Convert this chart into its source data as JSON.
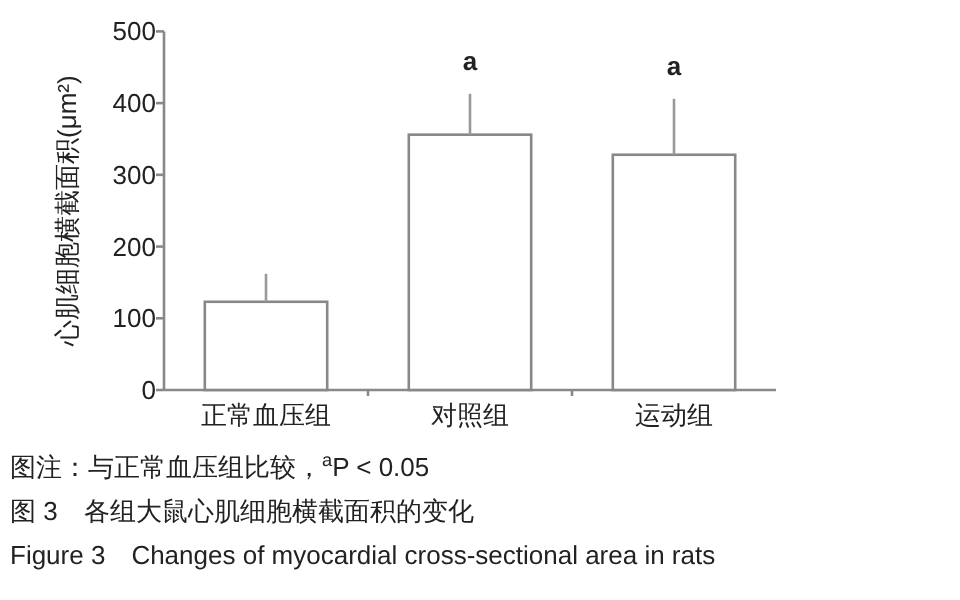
{
  "chart_data": {
    "type": "bar",
    "title": "图 3　各组大鼠心肌细胞横截面积的变化",
    "subtitle": "Figure 3　Changes of myocardial cross-sectional area in rats",
    "ylabel": "心肌细胞横截面积(μm²)",
    "categories": [
      "正常血压组",
      "对照组",
      "运动组"
    ],
    "series": [
      {
        "color": "#ffffff",
        "values": [
          123,
          356,
          328
        ],
        "errors": [
          [
            123,
            162
          ],
          [
            356,
            413
          ],
          [
            328,
            406
          ]
        ]
      }
    ],
    "ylim": [
      0,
      500
    ],
    "yticks": [
      0,
      100,
      200,
      300,
      400,
      500
    ],
    "grid": false,
    "annotations": [
      {
        "text": "a",
        "x": "对照组",
        "y": 413
      },
      {
        "text": "a",
        "x": "运动组",
        "y": 406
      },
      "图注：与正常血压组比较，$^{a}$P < 0.05"
    ]
  }
}
